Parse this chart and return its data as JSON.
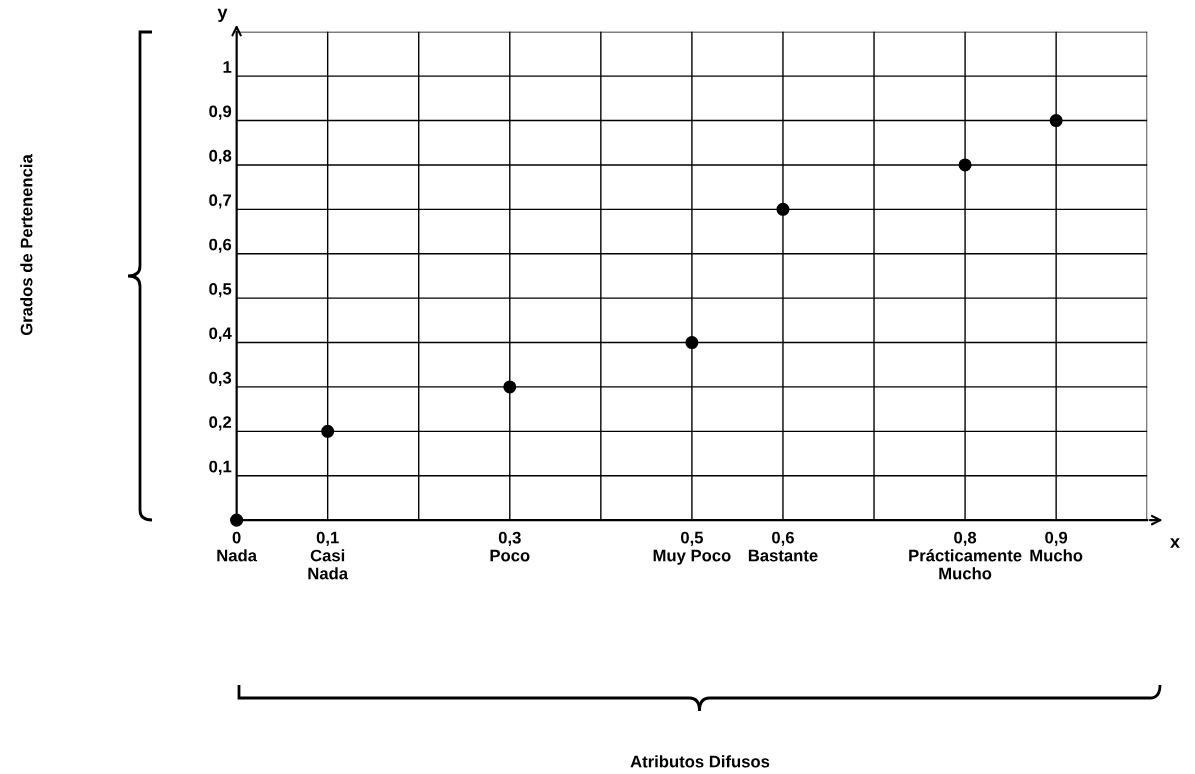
{
  "chart_data": {
    "type": "scatter",
    "xlabel": "x",
    "ylabel": "y",
    "x": [
      0,
      0.1,
      0.3,
      0.5,
      0.6,
      0.8,
      0.9
    ],
    "series": [
      {
        "color": "#000000",
        "values": [
          0,
          0.2,
          0.3,
          0.4,
          0.7,
          0.8,
          0.9
        ]
      }
    ],
    "xlim": [
      0,
      1.0
    ],
    "ylim": [
      0,
      1.1
    ],
    "xticks": [
      {
        "value": 0,
        "label": "0\nNada"
      },
      {
        "value": 0.1,
        "label": "0,1\nCasi\nNada"
      },
      {
        "value": 0.2,
        "label": null
      },
      {
        "value": 0.3,
        "label": "0,3\nPoco"
      },
      {
        "value": 0.4,
        "label": null
      },
      {
        "value": 0.5,
        "label": "0,5\nMuy Poco"
      },
      {
        "value": 0.6,
        "label": "0,6\nBastante"
      },
      {
        "value": 0.7,
        "label": null
      },
      {
        "value": 0.8,
        "label": "0,8\nPrácticamente\nMucho"
      },
      {
        "value": 0.9,
        "label": "0,9\nMucho"
      },
      {
        "value": 1.0,
        "label": null
      }
    ],
    "yticks": [
      {
        "value": 0,
        "label": null
      },
      {
        "value": 0.1,
        "label": "0,1"
      },
      {
        "value": 0.2,
        "label": "0,2"
      },
      {
        "value": 0.3,
        "label": "0,3"
      },
      {
        "value": 0.4,
        "label": "0,4"
      },
      {
        "value": 0.5,
        "label": "0,5"
      },
      {
        "value": 0.6,
        "label": "0,6"
      },
      {
        "value": 0.7,
        "label": "0,7"
      },
      {
        "value": 0.8,
        "label": "0,8"
      },
      {
        "value": 0.9,
        "label": "0,9"
      },
      {
        "value": 1,
        "label": "1"
      },
      {
        "value": 1.1,
        "label": null
      }
    ],
    "grid": true,
    "marker": "circle",
    "annotations": [
      "Grados de Pertenencia",
      "Atributos Difusos"
    ]
  }
}
